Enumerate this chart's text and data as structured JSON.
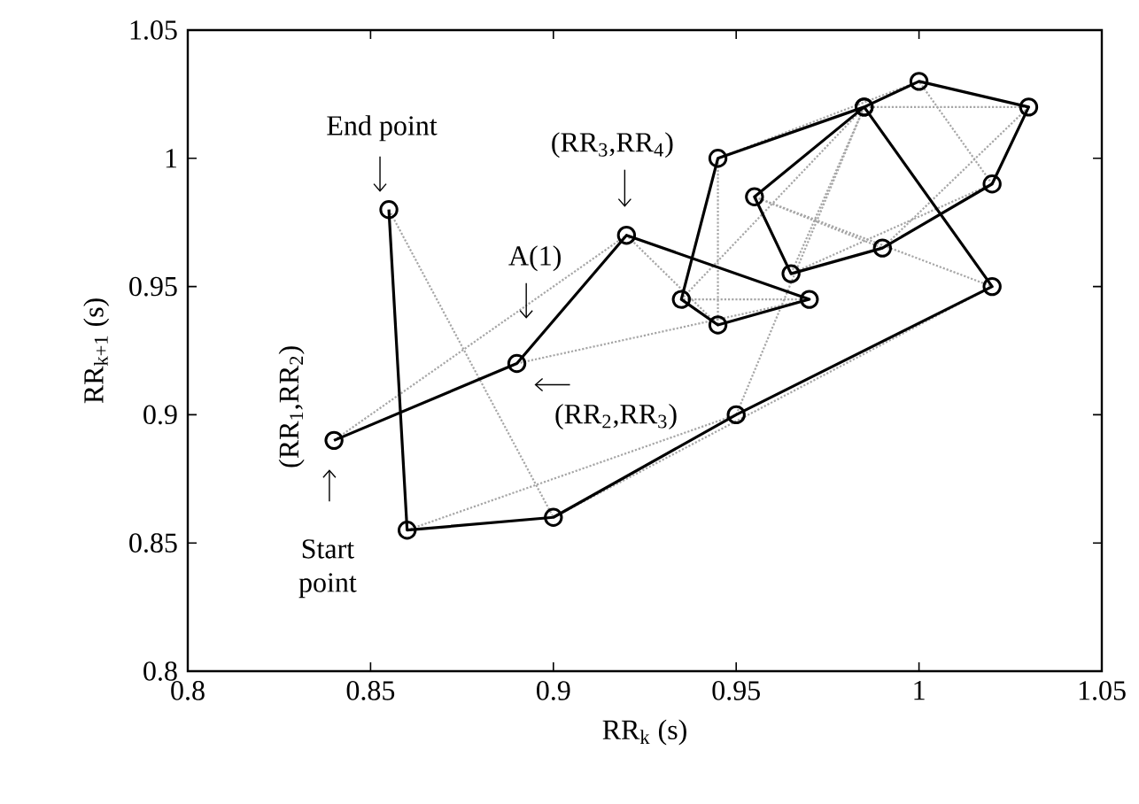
{
  "chart_data": {
    "type": "line",
    "xlabel": "RR$_{k}$ (s)",
    "ylabel": "RR$_{k+1}$ (s)",
    "xlim": [
      0.8,
      1.05
    ],
    "ylim": [
      0.8,
      1.05
    ],
    "xticks": [
      0.8,
      0.85,
      0.9,
      0.95,
      1,
      1.05
    ],
    "yticks": [
      0.8,
      0.85,
      0.9,
      0.95,
      1,
      1.05
    ],
    "series": [
      {
        "color": "#a6a6a6",
        "line_style": "dotted",
        "marker": "none",
        "x": [
          0.84,
          0.92,
          0.945,
          0.945,
          1.0,
          1.02,
          0.965,
          0.985,
          0.95,
          0.86
        ],
        "values": [
          0.89,
          0.97,
          0.935,
          1.0,
          1.03,
          0.99,
          0.955,
          1.02,
          0.9,
          0.855
        ]
      },
      {
        "color": "#a6a6a6",
        "line_style": "dotted",
        "marker": "none",
        "x": [
          0.89,
          0.97,
          0.935,
          0.985,
          1.03,
          0.99,
          0.955,
          1.02,
          0.9,
          0.855
        ],
        "values": [
          0.92,
          0.945,
          0.945,
          1.02,
          1.02,
          0.965,
          0.985,
          0.95,
          0.86,
          0.98
        ]
      },
      {
        "color": "#000000",
        "line_style": "solid",
        "marker": "circle",
        "x": [
          0.84,
          0.89,
          0.92,
          0.97,
          0.945,
          0.935,
          0.945,
          0.985,
          1.0,
          1.03,
          1.02,
          0.99,
          0.965,
          0.955,
          0.985,
          1.02,
          0.95,
          0.9,
          0.86,
          0.855
        ],
        "values": [
          0.89,
          0.92,
          0.97,
          0.945,
          0.935,
          0.945,
          1.0,
          1.02,
          1.03,
          1.02,
          0.99,
          0.965,
          0.955,
          0.985,
          1.02,
          0.95,
          0.9,
          0.86,
          0.855,
          0.98
        ]
      }
    ],
    "annotations": [
      {
        "text": "End point",
        "x": 0.855,
        "y": 0.98
      },
      {
        "text": "(RR$_{3}$,RR$_{4}$)",
        "x": 0.92,
        "y": 0.97
      },
      "A(1)",
      {
        "text": "(RR$_{2}$,RR$_{3}$)",
        "x": 0.89,
        "y": 0.92
      },
      {
        "text": "(RR$_{1}$,RR$_{2}$)",
        "x": 0.84,
        "y": 0.89
      },
      "Start point"
    ]
  }
}
